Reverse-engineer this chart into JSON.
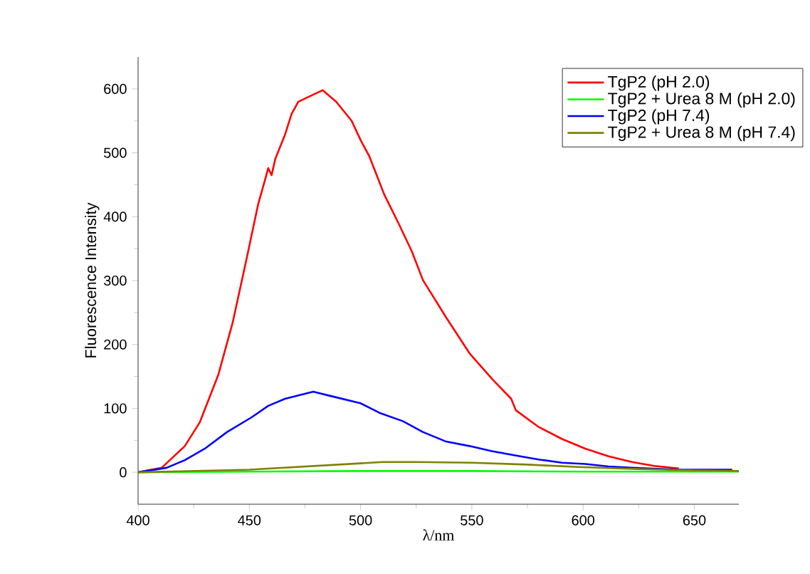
{
  "chart_data": {
    "type": "line",
    "xlabel": "λ/nm",
    "ylabel": "Fluorescence Intensity",
    "xlim": [
      400,
      670
    ],
    "ylim": [
      -50,
      650
    ],
    "xticks": [
      400,
      450,
      500,
      550,
      600,
      650
    ],
    "yticks": [
      0,
      100,
      200,
      300,
      400,
      500,
      600
    ],
    "legend": "top right",
    "marker": "none",
    "line_style": "solid",
    "grid": false,
    "series": [
      {
        "name": "TgP2 (pH 2.0)",
        "color": "#ff0000",
        "x": [
          400,
          410.6,
          421,
          427.7,
          436,
          442.5,
          449,
          454,
          457,
          458.5,
          460,
          461.7,
          466,
          469,
          472,
          478.7,
          483,
          489,
          496,
          500,
          504,
          510.6,
          517,
          523,
          528,
          538.5,
          549,
          559.4,
          567.7,
          569.8,
          580,
          590.6,
          601,
          611.5,
          622,
          632,
          643
        ],
        "values": [
          0,
          7,
          41,
          78,
          152,
          234,
          338,
          420,
          457,
          476,
          465,
          491,
          528,
          561,
          580,
          591,
          598,
          580,
          550,
          520,
          494,
          435,
          390,
          346,
          301,
          242,
          186,
          145,
          115,
          97,
          71,
          52,
          37,
          25,
          16,
          10,
          6
        ]
      },
      {
        "name": "TgP2 + Urea 8 M (pH 2.0)",
        "color": "#00ff00",
        "x": [
          400,
          450,
          500,
          550,
          600,
          670
        ],
        "values": [
          0,
          1,
          2,
          2,
          1,
          1
        ]
      },
      {
        "name": "TgP2 (pH 7.4)",
        "color": "#0000ff",
        "x": [
          400,
          412.8,
          421,
          430,
          440,
          451,
          458.5,
          466,
          478.7,
          487,
          500,
          508.5,
          519,
          528,
          538.5,
          549,
          559,
          570,
          580,
          590.6,
          601,
          611.5,
          622,
          643,
          667
        ],
        "values": [
          0,
          7,
          19,
          37,
          63,
          86,
          104,
          115,
          126,
          119,
          108,
          93,
          80,
          63,
          48,
          41,
          33,
          26,
          20,
          15,
          13,
          9,
          7,
          4,
          4
        ]
      },
      {
        "name": "TgP2 + Urea 8 M (pH 7.4)",
        "color": "#808000",
        "x": [
          400,
          450,
          475,
          500,
          510,
          525,
          550,
          575,
          600,
          625,
          650,
          670
        ],
        "values": [
          0,
          4,
          9,
          14,
          16,
          16,
          15,
          12,
          8,
          5,
          3,
          2
        ]
      }
    ]
  }
}
